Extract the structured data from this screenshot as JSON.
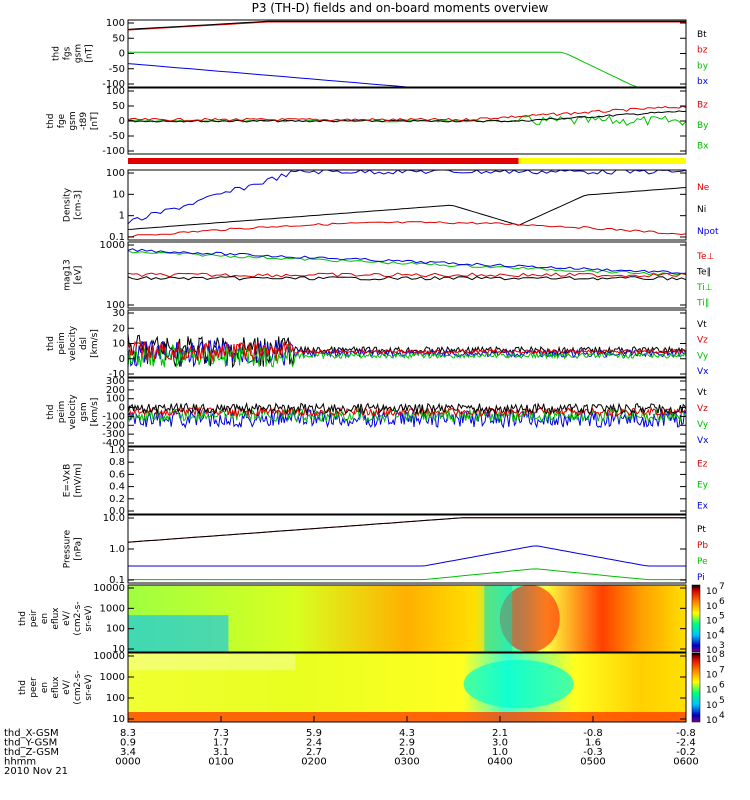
{
  "chart_data": {
    "type": "line",
    "title": "P3 (TH-D) fields and on-board moments overview",
    "date": "2010 Nov 21",
    "colors": {
      "black": "#000000",
      "red": "#e00000",
      "green": "#00c000",
      "blue": "#0000e0",
      "yellow": "#ffff00"
    },
    "panels": [
      {
        "id": "fgs",
        "ylabel": [
          "thd",
          "fgs",
          "gsm",
          "[nT]"
        ],
        "yticks": [
          "100",
          "50",
          "0",
          "-50",
          "-100"
        ],
        "legend": [
          {
            "text": "Bt",
            "color": "black"
          },
          {
            "text": "bz",
            "color": "red"
          },
          {
            "text": "by",
            "color": "green"
          },
          {
            "text": "bx",
            "color": "blue"
          }
        ]
      },
      {
        "id": "fge",
        "ylabel": [
          "thd",
          "fge",
          "gsm",
          "-t89",
          "[nT]"
        ],
        "yticks": [
          "100",
          "50",
          "0",
          "-50",
          "-100"
        ],
        "legend": [
          {
            "text": "Bz",
            "color": "red"
          },
          {
            "text": "By",
            "color": "green"
          },
          {
            "text": "Bx",
            "color": "green"
          }
        ]
      },
      {
        "id": "density",
        "ylabel": [
          "Density",
          "[cm-3]"
        ],
        "yticks": [
          "100",
          "10",
          "1",
          "0.1"
        ],
        "legend": [
          {
            "text": "Ne",
            "color": "red"
          },
          {
            "text": "Ni",
            "color": "black"
          },
          {
            "text": "Npot",
            "color": "blue"
          }
        ]
      },
      {
        "id": "temp",
        "ylabel": [
          "mag13",
          "[eV]"
        ],
        "yticks": [
          "1000",
          "100"
        ],
        "legend": [
          {
            "text": "Te⊥",
            "color": "red"
          },
          {
            "text": "Te∥",
            "color": "black"
          },
          {
            "text": "Ti⊥",
            "color": "green"
          },
          {
            "text": "Ti∥",
            "color": "green"
          }
        ]
      },
      {
        "id": "velocity_e",
        "ylabel": [
          "thd",
          "peim",
          "velocity",
          "dsl",
          "[km/s]"
        ],
        "yticks": [
          "30",
          "20",
          "10",
          "0",
          "-10"
        ],
        "legend": [
          {
            "text": "Vt",
            "color": "black"
          },
          {
            "text": "Vz",
            "color": "red"
          },
          {
            "text": "Vy",
            "color": "green"
          },
          {
            "text": "Vx",
            "color": "blue"
          }
        ]
      },
      {
        "id": "velocity_i",
        "ylabel": [
          "thd",
          "peim",
          "velocity",
          "gsm",
          "[km/s]"
        ],
        "yticks": [
          "300",
          "200",
          "100",
          "0",
          "-100",
          "-200",
          "-300",
          "-400"
        ],
        "legend": [
          {
            "text": "Vt",
            "color": "black"
          },
          {
            "text": "Vz",
            "color": "red"
          },
          {
            "text": "Vy",
            "color": "green"
          },
          {
            "text": "Vx",
            "color": "blue"
          }
        ]
      },
      {
        "id": "efield",
        "ylabel": [
          "E=-VxB",
          "[mV/m]"
        ],
        "yticks": [
          "1.0",
          "0.8",
          "0.6",
          "0.4",
          "0.2",
          "0.0"
        ],
        "legend": [
          {
            "text": "Ez",
            "color": "red"
          },
          {
            "text": "Ey",
            "color": "green"
          },
          {
            "text": "Ex",
            "color": "blue"
          }
        ]
      },
      {
        "id": "pressure",
        "ylabel": [
          "Pressure",
          "[nPa]"
        ],
        "yticks": [
          "10.0",
          "1.0",
          "0.1"
        ],
        "legend": [
          {
            "text": "Pt",
            "color": "black"
          },
          {
            "text": "Pb",
            "color": "red"
          },
          {
            "text": "Pe",
            "color": "green"
          },
          {
            "text": "Pi",
            "color": "blue"
          }
        ]
      },
      {
        "id": "ion_spec",
        "ylabel": [
          "thd",
          "peir",
          "en",
          "eflux",
          "eV/",
          "(cm2-s-",
          "sr-eV)"
        ],
        "yticks": [
          "10000",
          "1000",
          "100",
          "10"
        ],
        "colorbar": [
          "10",
          "10",
          "10",
          "10",
          "10"
        ],
        "colorbar_exp": [
          "7",
          "6",
          "5",
          "4",
          "3"
        ]
      },
      {
        "id": "elec_spec",
        "ylabel": [
          "thd",
          "peer",
          "en",
          "eflux",
          "eV/",
          "(cm2-s-",
          "sr-eV)"
        ],
        "yticks": [
          "10000",
          "1000",
          "100",
          "10"
        ],
        "colorbar": [
          "10",
          "10",
          "10",
          "10",
          "10"
        ],
        "colorbar_exp": [
          "8",
          "7",
          "6",
          "5",
          "4"
        ]
      }
    ],
    "xaxis": {
      "rows": [
        {
          "label": "thd_X-GSM",
          "values": [
            "8.3",
            "7.3",
            "5.9",
            "4.3",
            "2.1",
            "-0.8",
            "-0.8"
          ]
        },
        {
          "label": "thd_Y-GSM",
          "values": [
            "0.9",
            "1.7",
            "2.4",
            "2.9",
            "3.0",
            "1.6",
            "-2.4"
          ]
        },
        {
          "label": "thd_Z-GSM",
          "values": [
            "3.4",
            "3.1",
            "2.7",
            "2.0",
            "1.0",
            "-0.3",
            "-0.2"
          ]
        },
        {
          "label": "hhmm",
          "values": [
            "0000",
            "0100",
            "0200",
            "0300",
            "0400",
            "0500",
            "0600"
          ]
        }
      ]
    }
  }
}
